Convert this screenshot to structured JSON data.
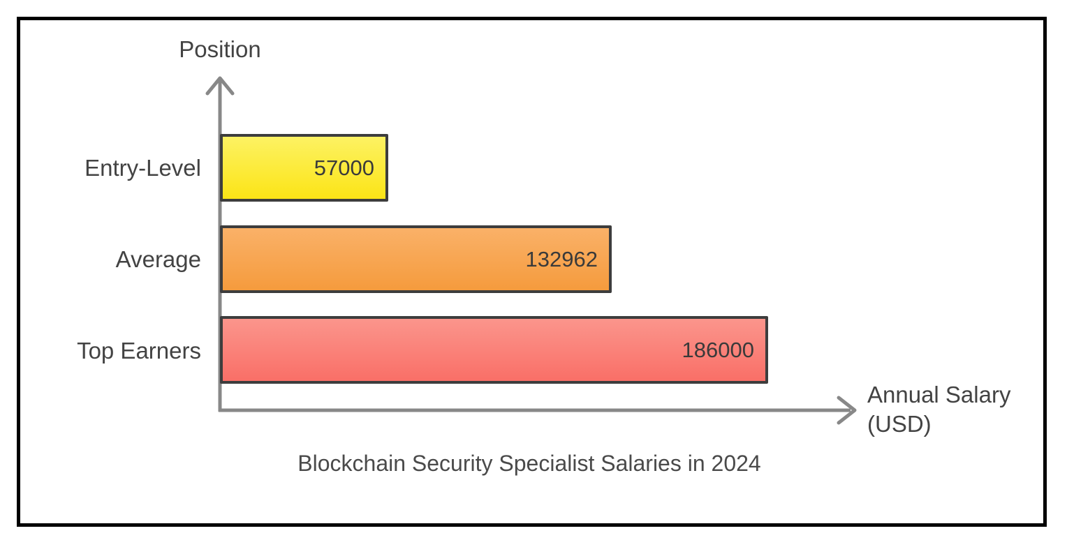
{
  "chart_data": {
    "type": "bar",
    "orientation": "horizontal",
    "title": "Blockchain Security Specialist Salaries in 2024",
    "xlabel": "Annual Salary (USD)",
    "ylabel": "Position",
    "categories": [
      "Entry-Level",
      "Average",
      "Top Earners"
    ],
    "values": [
      57000,
      132962,
      186000
    ],
    "xlim": [
      0,
      186000
    ],
    "grid": false,
    "legend": false,
    "bar_colors": [
      {
        "top": "#fdf263",
        "bottom": "#fbe416"
      },
      {
        "top": "#fab168",
        "bottom": "#f59b3d"
      },
      {
        "top": "#fb958c",
        "bottom": "#f96f67"
      }
    ],
    "bar_border_color": "#3d3d3d",
    "axis_color": "#888888",
    "text_color": "#434343",
    "frame_color": "#000000"
  }
}
